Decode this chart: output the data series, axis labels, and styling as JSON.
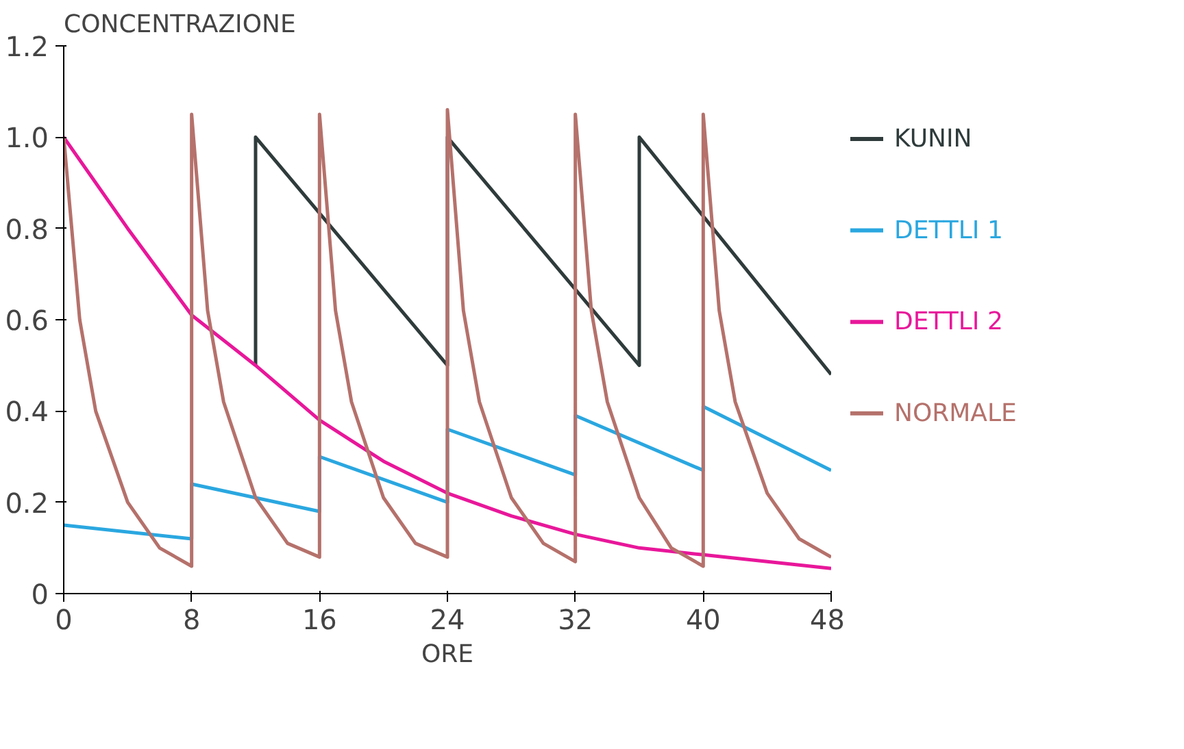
{
  "chart_data": {
    "type": "line",
    "ylabel": "CONCENTRAZIONE",
    "xlabel": "ORE",
    "xlim": [
      0,
      48
    ],
    "ylim": [
      0,
      1.2
    ],
    "xticks": [
      0,
      8,
      16,
      24,
      32,
      40,
      48
    ],
    "yticks": [
      0,
      {
        "value": 0.2,
        "label": "0.2"
      },
      {
        "value": 0.4,
        "label": "0.4"
      },
      {
        "value": 0.6,
        "label": "0.6"
      },
      {
        "value": 0.8,
        "label": "0.8"
      },
      {
        "value": 1.0,
        "label": "1.0"
      },
      {
        "value": 1.2,
        "label": "1.2"
      }
    ],
    "grid": false,
    "legend": "right",
    "marker": "none",
    "line_style": "solid",
    "series": [
      {
        "name": "KUNIN",
        "color": "#2f3b3b",
        "x": [
          12,
          12,
          24,
          24,
          36,
          36,
          48
        ],
        "values": [
          0.5,
          1.0,
          0.5,
          1.0,
          0.5,
          1.0,
          0.48
        ]
      },
      {
        "name": "DETTLI 1",
        "color": "#2aa7e0",
        "x": [
          0,
          8,
          8,
          16,
          16,
          24,
          24,
          32,
          32,
          40,
          40,
          48
        ],
        "values": [
          0.15,
          0.12,
          0.24,
          0.18,
          0.3,
          0.2,
          0.36,
          0.26,
          0.39,
          0.27,
          0.41,
          0.27
        ]
      },
      {
        "name": "DETTLI 2",
        "color": "#e8179a",
        "x": [
          0,
          4,
          8,
          12,
          16,
          20,
          24,
          28,
          32,
          36,
          40,
          44,
          48
        ],
        "values": [
          1.0,
          0.8,
          0.61,
          0.5,
          0.38,
          0.29,
          0.22,
          0.17,
          0.13,
          0.1,
          0.085,
          0.07,
          0.055
        ]
      },
      {
        "name": "NORMALE",
        "color": "#b5716b",
        "x": [
          0,
          1,
          2,
          4,
          6,
          8,
          8,
          9,
          10,
          12,
          14,
          16,
          16,
          17,
          18,
          20,
          22,
          24,
          24,
          25,
          26,
          28,
          30,
          32,
          32,
          33,
          34,
          36,
          38,
          40,
          40,
          41,
          42,
          44,
          46,
          48
        ],
        "values": [
          1.0,
          0.6,
          0.4,
          0.2,
          0.1,
          0.06,
          1.05,
          0.62,
          0.42,
          0.21,
          0.11,
          0.08,
          1.05,
          0.62,
          0.42,
          0.21,
          0.11,
          0.08,
          1.06,
          0.62,
          0.42,
          0.21,
          0.11,
          0.07,
          1.05,
          0.62,
          0.42,
          0.21,
          0.1,
          0.06,
          1.05,
          0.62,
          0.42,
          0.22,
          0.12,
          0.08
        ]
      }
    ]
  }
}
